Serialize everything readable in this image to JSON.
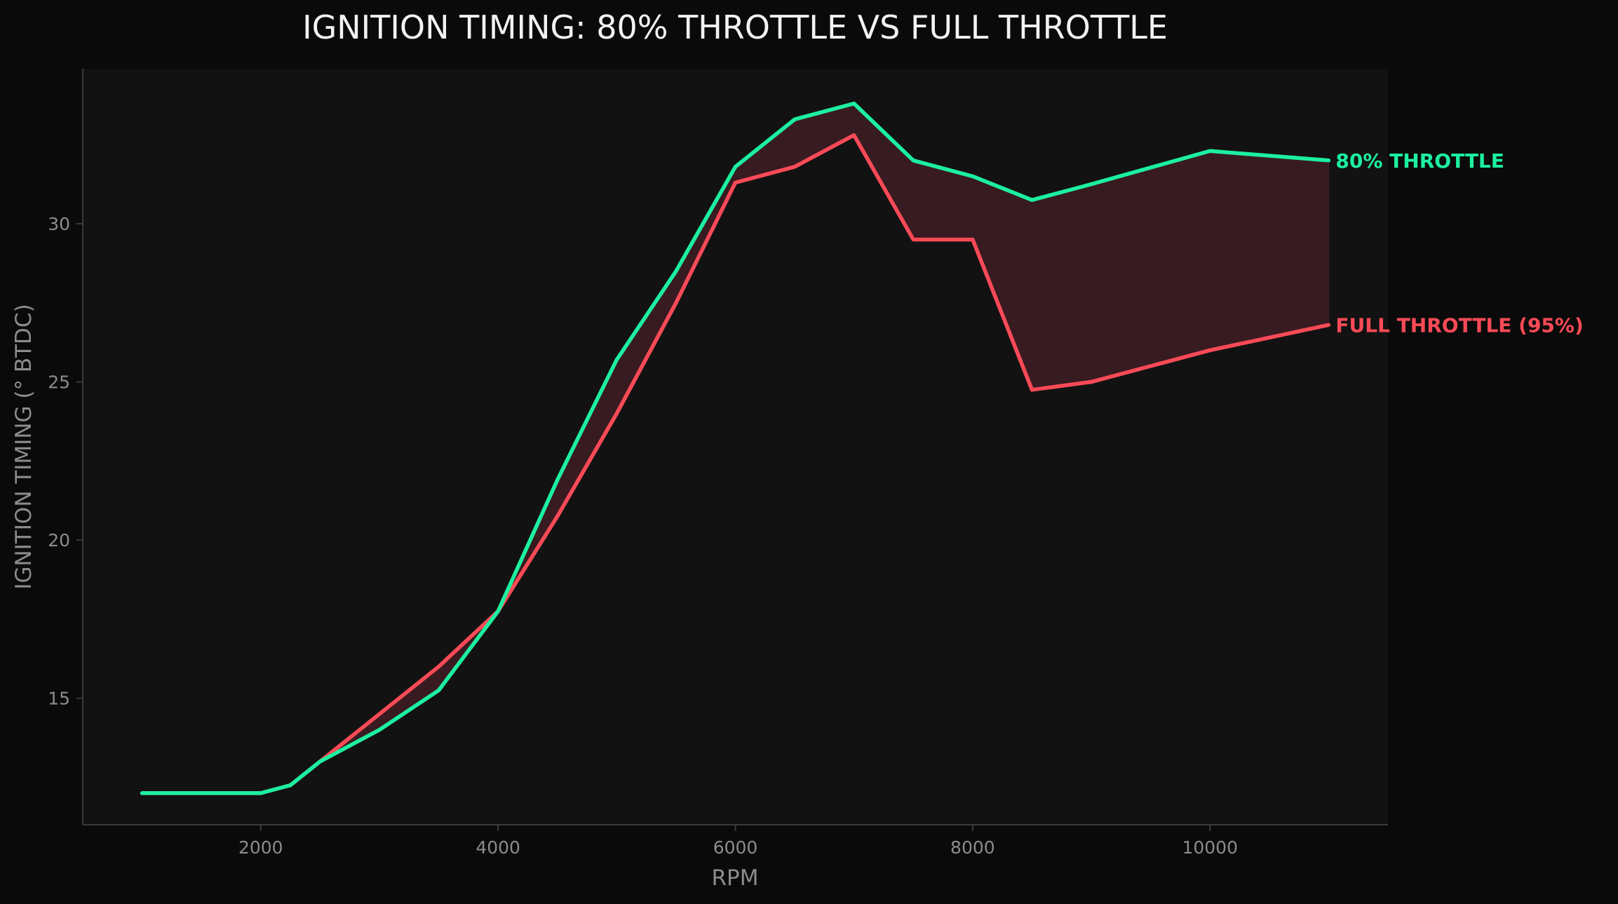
{
  "chart_data": {
    "type": "line",
    "title": "IGNITION TIMING: 80% THROTTLE VS FULL THROTTLE",
    "xlabel": "RPM",
    "ylabel": "IGNITION TIMING (° BTDC)",
    "xlim": [
      500,
      11500
    ],
    "ylim": [
      11,
      34.9
    ],
    "xticks": [
      2000,
      4000,
      6000,
      8000,
      10000
    ],
    "yticks": [
      15,
      20,
      25,
      30
    ],
    "grid": false,
    "legend": "inline-right",
    "fill_between": true,
    "colors": {
      "background": "#0a0a0a",
      "plot_area": "#121212",
      "axis": "#3a3a3a",
      "fill": "#381b20"
    },
    "series": [
      {
        "name": "80% THROTTLE",
        "color": "#1cf0a0",
        "x": [
          1000,
          2000,
          2250,
          2500,
          3000,
          3500,
          4000,
          4500,
          5000,
          5500,
          6000,
          6500,
          7000,
          7500,
          8000,
          8500,
          9000,
          10000,
          11000
        ],
        "y": [
          12.0,
          12.0,
          12.25,
          13.0,
          14.0,
          15.25,
          17.75,
          21.9,
          25.7,
          28.5,
          31.8,
          33.3,
          33.8,
          32.0,
          31.5,
          30.75,
          31.25,
          32.3,
          32.0
        ]
      },
      {
        "name": "FULL THROTTLE (95%)",
        "color": "#fa4a57",
        "x": [
          1000,
          2000,
          2250,
          2500,
          3000,
          3500,
          4000,
          4500,
          5000,
          5500,
          6000,
          6500,
          7000,
          7500,
          8000,
          8500,
          9000,
          10000,
          11000
        ],
        "y": [
          12.0,
          12.0,
          12.25,
          13.0,
          14.5,
          16.0,
          17.75,
          20.75,
          24.0,
          27.5,
          31.3,
          31.8,
          32.8,
          29.5,
          29.5,
          24.75,
          25.0,
          26.0,
          26.8
        ]
      }
    ]
  }
}
